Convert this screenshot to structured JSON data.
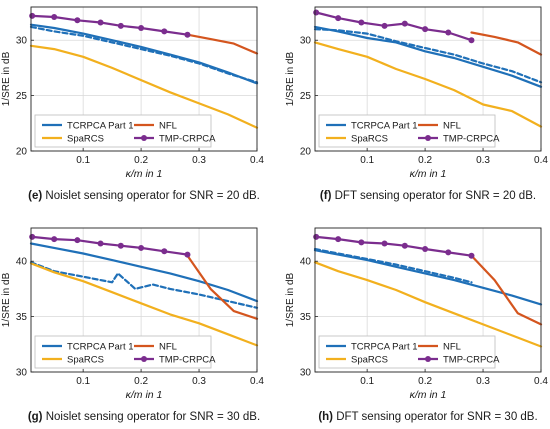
{
  "chart_data": [
    {
      "type": "line",
      "panel": "e",
      "caption": "Noislet sensing operator for SNR = 20 dB.",
      "xlabel": "κ/m in 1",
      "ylabel": "1/SRE in dB",
      "xlim": [
        0.01,
        0.4
      ],
      "ylim": [
        20,
        33
      ],
      "xticks": [
        0.1,
        0.2,
        0.3,
        0.4
      ],
      "yticks": [
        20,
        25,
        30
      ],
      "grid": true,
      "legend_placement": "bottom-left",
      "legend": [
        "TCRPCA Part 1",
        "NFL",
        "SpaRCS",
        "TMP-CRPCA"
      ],
      "series": [
        {
          "name": "TCRPCA Part 1",
          "color": "#1f70b8",
          "style": "solid",
          "x": [
            0.01,
            0.05,
            0.1,
            0.15,
            0.2,
            0.25,
            0.3,
            0.35,
            0.4
          ],
          "y": [
            31.4,
            31.1,
            30.6,
            30.0,
            29.4,
            28.7,
            28.0,
            27.1,
            26.1
          ]
        },
        {
          "name": "",
          "color": "#1f70b8",
          "style": "dashed",
          "x": [
            0.01,
            0.05,
            0.1,
            0.15,
            0.2,
            0.25,
            0.3,
            0.35,
            0.4
          ],
          "y": [
            31.2,
            30.8,
            30.4,
            29.8,
            29.2,
            28.6,
            27.9,
            27.0,
            26.2
          ]
        },
        {
          "name": "NFL",
          "color": "#d4551e",
          "style": "solid",
          "x": [
            0.28,
            0.32,
            0.36,
            0.4
          ],
          "y": [
            30.5,
            30.1,
            29.7,
            28.8
          ]
        },
        {
          "name": "SpaRCS",
          "color": "#f2b01e",
          "style": "solid",
          "x": [
            0.01,
            0.05,
            0.1,
            0.15,
            0.2,
            0.25,
            0.3,
            0.35,
            0.4
          ],
          "y": [
            29.5,
            29.2,
            28.5,
            27.5,
            26.4,
            25.3,
            24.3,
            23.3,
            22.1
          ]
        },
        {
          "name": "TMP-CRPCA",
          "color": "#7b2d8e",
          "style": "marker",
          "x": [
            0.012,
            0.05,
            0.09,
            0.13,
            0.165,
            0.2,
            0.24,
            0.28
          ],
          "y": [
            32.2,
            32.1,
            31.8,
            31.6,
            31.3,
            31.1,
            30.8,
            30.5
          ]
        }
      ]
    },
    {
      "type": "line",
      "panel": "f",
      "caption": "DFT sensing operator for SNR = 20 dB.",
      "xlabel": "κ/m in 1",
      "ylabel": "1/SRE in dB",
      "xlim": [
        0.01,
        0.4
      ],
      "ylim": [
        20,
        33
      ],
      "xticks": [
        0.1,
        0.2,
        0.3,
        0.4
      ],
      "yticks": [
        20,
        25,
        30
      ],
      "grid": true,
      "legend_placement": "bottom-left",
      "legend": [
        "TCRPCA Part 1",
        "NFL",
        "SpaRCS",
        "TMP-CRPCA"
      ],
      "series": [
        {
          "name": "TCRPCA Part 1",
          "color": "#1f70b8",
          "style": "solid",
          "x": [
            0.01,
            0.05,
            0.1,
            0.15,
            0.2,
            0.25,
            0.3,
            0.35,
            0.4
          ],
          "y": [
            31.2,
            30.8,
            30.2,
            29.8,
            29.0,
            28.4,
            27.6,
            26.8,
            25.8
          ]
        },
        {
          "name": "",
          "color": "#1f70b8",
          "style": "dashed",
          "x": [
            0.01,
            0.05,
            0.1,
            0.15,
            0.2,
            0.25,
            0.3,
            0.35,
            0.4
          ],
          "y": [
            31.0,
            30.9,
            30.6,
            29.9,
            29.3,
            28.7,
            27.9,
            27.2,
            26.2
          ]
        },
        {
          "name": "NFL",
          "color": "#d4551e",
          "style": "solid",
          "x": [
            0.28,
            0.32,
            0.36,
            0.4
          ],
          "y": [
            30.7,
            30.3,
            29.8,
            28.7
          ]
        },
        {
          "name": "SpaRCS",
          "color": "#f2b01e",
          "style": "solid",
          "x": [
            0.01,
            0.05,
            0.1,
            0.15,
            0.2,
            0.25,
            0.3,
            0.35,
            0.4
          ],
          "y": [
            29.8,
            29.2,
            28.5,
            27.4,
            26.5,
            25.5,
            24.2,
            23.6,
            22.2
          ]
        },
        {
          "name": "TMP-CRPCA",
          "color": "#7b2d8e",
          "style": "marker",
          "x": [
            0.012,
            0.05,
            0.09,
            0.13,
            0.165,
            0.2,
            0.24,
            0.28
          ],
          "y": [
            32.5,
            32.0,
            31.6,
            31.3,
            31.5,
            31.0,
            30.7,
            30.0
          ]
        }
      ]
    },
    {
      "type": "line",
      "panel": "g",
      "caption": "Noislet sensing operator for SNR = 30 dB.",
      "xlabel": "κ/m in 1",
      "ylabel": "1/SRE in dB",
      "xlim": [
        0.01,
        0.4
      ],
      "ylim": [
        30,
        43
      ],
      "xticks": [
        0.1,
        0.2,
        0.3,
        0.4
      ],
      "yticks": [
        30,
        35,
        40
      ],
      "grid": true,
      "legend_placement": "bottom-left",
      "legend": [
        "TCRPCA Part 1",
        "NFL",
        "SpaRCS",
        "TMP-CRPCA"
      ],
      "series": [
        {
          "name": "TCRPCA Part 1",
          "color": "#1f70b8",
          "style": "solid",
          "x": [
            0.01,
            0.05,
            0.1,
            0.15,
            0.2,
            0.25,
            0.3,
            0.35,
            0.4
          ],
          "y": [
            41.6,
            41.2,
            40.7,
            40.1,
            39.5,
            38.9,
            38.2,
            37.4,
            36.4
          ]
        },
        {
          "name": "",
          "color": "#1f70b8",
          "style": "dashed",
          "x": [
            0.01,
            0.05,
            0.1,
            0.15,
            0.16,
            0.19,
            0.22,
            0.25,
            0.3,
            0.35,
            0.4
          ],
          "y": [
            39.9,
            39.1,
            38.6,
            38.1,
            38.9,
            37.5,
            37.9,
            37.5,
            37.0,
            36.4,
            35.8
          ]
        },
        {
          "name": "NFL",
          "color": "#d4551e",
          "style": "solid",
          "x": [
            0.28,
            0.32,
            0.36,
            0.4
          ],
          "y": [
            40.5,
            37.5,
            35.5,
            34.8
          ]
        },
        {
          "name": "SpaRCS",
          "color": "#f2b01e",
          "style": "solid",
          "x": [
            0.01,
            0.05,
            0.1,
            0.15,
            0.2,
            0.25,
            0.3,
            0.35,
            0.4
          ],
          "y": [
            39.8,
            39.0,
            38.2,
            37.2,
            36.2,
            35.2,
            34.4,
            33.4,
            32.4
          ]
        },
        {
          "name": "TMP-CRPCA",
          "color": "#7b2d8e",
          "style": "marker",
          "x": [
            0.012,
            0.05,
            0.09,
            0.13,
            0.165,
            0.2,
            0.24,
            0.28
          ],
          "y": [
            42.2,
            42.0,
            41.9,
            41.6,
            41.4,
            41.2,
            40.9,
            40.6
          ]
        }
      ]
    },
    {
      "type": "line",
      "panel": "h",
      "caption": "DFT sensing operator for SNR = 30 dB.",
      "xlabel": "κ/m in 1",
      "ylabel": "1/SRE in dB",
      "xlim": [
        0.01,
        0.4
      ],
      "ylim": [
        30,
        43
      ],
      "xticks": [
        0.1,
        0.2,
        0.3,
        0.4
      ],
      "yticks": [
        30,
        35,
        40
      ],
      "grid": true,
      "legend_placement": "bottom-left",
      "legend": [
        "TCRPCA Part 1",
        "NFL",
        "SpaRCS",
        "TMP-CRPCA"
      ],
      "series": [
        {
          "name": "TCRPCA Part 1",
          "color": "#1f70b8",
          "style": "solid",
          "x": [
            0.01,
            0.05,
            0.1,
            0.15,
            0.2,
            0.25,
            0.3,
            0.35,
            0.4
          ],
          "y": [
            41.0,
            40.6,
            40.1,
            39.5,
            38.9,
            38.3,
            37.6,
            36.9,
            36.1
          ]
        },
        {
          "name": "",
          "color": "#1f70b8",
          "style": "dashed",
          "x": [
            0.01,
            0.05,
            0.1,
            0.15,
            0.2,
            0.25,
            0.28
          ],
          "y": [
            41.1,
            40.7,
            40.2,
            39.7,
            39.1,
            38.5,
            38.1
          ]
        },
        {
          "name": "NFL",
          "color": "#d4551e",
          "style": "solid",
          "x": [
            0.28,
            0.32,
            0.36,
            0.4
          ],
          "y": [
            40.5,
            38.3,
            35.3,
            34.3
          ]
        },
        {
          "name": "SpaRCS",
          "color": "#f2b01e",
          "style": "solid",
          "x": [
            0.01,
            0.05,
            0.1,
            0.15,
            0.2,
            0.25,
            0.3,
            0.35,
            0.4
          ],
          "y": [
            39.9,
            39.1,
            38.3,
            37.4,
            36.3,
            35.3,
            34.3,
            33.3,
            32.3
          ]
        },
        {
          "name": "TMP-CRPCA",
          "color": "#7b2d8e",
          "style": "marker",
          "x": [
            0.012,
            0.05,
            0.09,
            0.13,
            0.165,
            0.2,
            0.24,
            0.28
          ],
          "y": [
            42.2,
            42.0,
            41.7,
            41.6,
            41.4,
            41.1,
            40.8,
            40.5
          ]
        }
      ]
    }
  ]
}
